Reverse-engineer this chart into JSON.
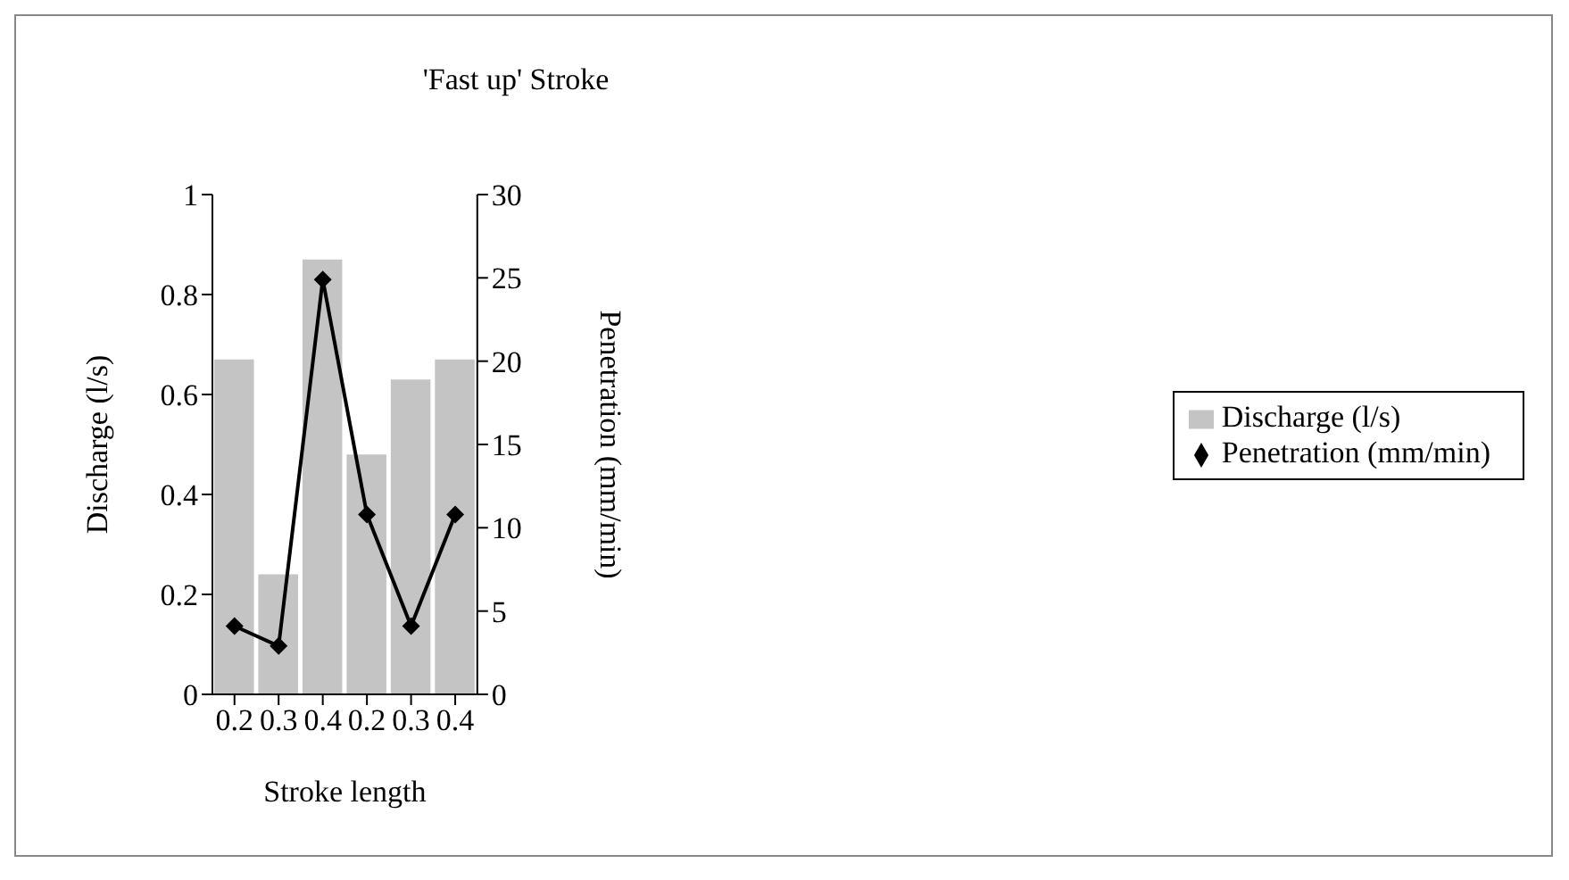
{
  "chart_data": {
    "type": "bar",
    "title": "'Fast up' Stroke",
    "xlabel": "Stroke length",
    "ylabel": "Discharge (l/s)",
    "y2label": "Penetration (mm/min)",
    "categories": [
      "0.2",
      "0.3",
      "0.4",
      "0.2",
      "0.3",
      "0.4"
    ],
    "series": [
      {
        "name": "Discharge (l/s)",
        "color": "#c4c4c4",
        "values": [
          0.67,
          0.24,
          0.87,
          0.48,
          0.63,
          0.67
        ]
      },
      {
        "name": "Penetration (mm/min)",
        "type": "line",
        "axis": "y2",
        "color": "#000000",
        "marker": "diamond",
        "values": [
          4.1,
          2.9,
          24.9,
          10.8,
          4.1,
          10.8
        ]
      }
    ],
    "ylim": [
      0,
      1
    ],
    "yticks": [
      0,
      0.2,
      0.4,
      0.6,
      0.8,
      1
    ],
    "y2lim": [
      0,
      30
    ],
    "y2ticks": [
      0,
      5,
      10,
      15,
      20,
      25,
      30
    ],
    "legend": "right"
  }
}
